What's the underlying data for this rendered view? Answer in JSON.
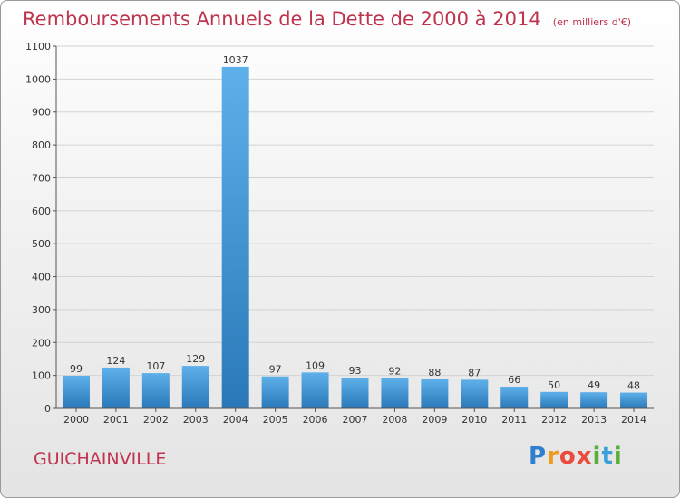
{
  "title": "Remboursements Annuels de la Dette de 2000 à 2014",
  "subtitle": "(en milliers d'€)",
  "commune": "GUICHAINVILLE",
  "logo": {
    "letters": [
      "P",
      "r",
      "o",
      "x",
      "i",
      "t",
      "i"
    ]
  },
  "colors": {
    "title": "#c0334d",
    "bar_top": "#5eb0ea",
    "bar_bottom": "#2a78b8"
  },
  "chart_data": {
    "type": "bar",
    "title": "Remboursements Annuels de la Dette de 2000 à 2014",
    "subtitle": "(en milliers d'€)",
    "categories": [
      "2000",
      "2001",
      "2002",
      "2003",
      "2004",
      "2005",
      "2006",
      "2007",
      "2008",
      "2009",
      "2010",
      "2011",
      "2012",
      "2013",
      "2014"
    ],
    "values": [
      99,
      124,
      107,
      129,
      1037,
      97,
      109,
      93,
      92,
      88,
      87,
      66,
      50,
      49,
      48
    ],
    "ylim": [
      0,
      1100
    ],
    "yticks": [
      0,
      100,
      200,
      300,
      400,
      500,
      600,
      700,
      800,
      900,
      1000,
      1100
    ],
    "grid": true,
    "data_labels": true
  }
}
